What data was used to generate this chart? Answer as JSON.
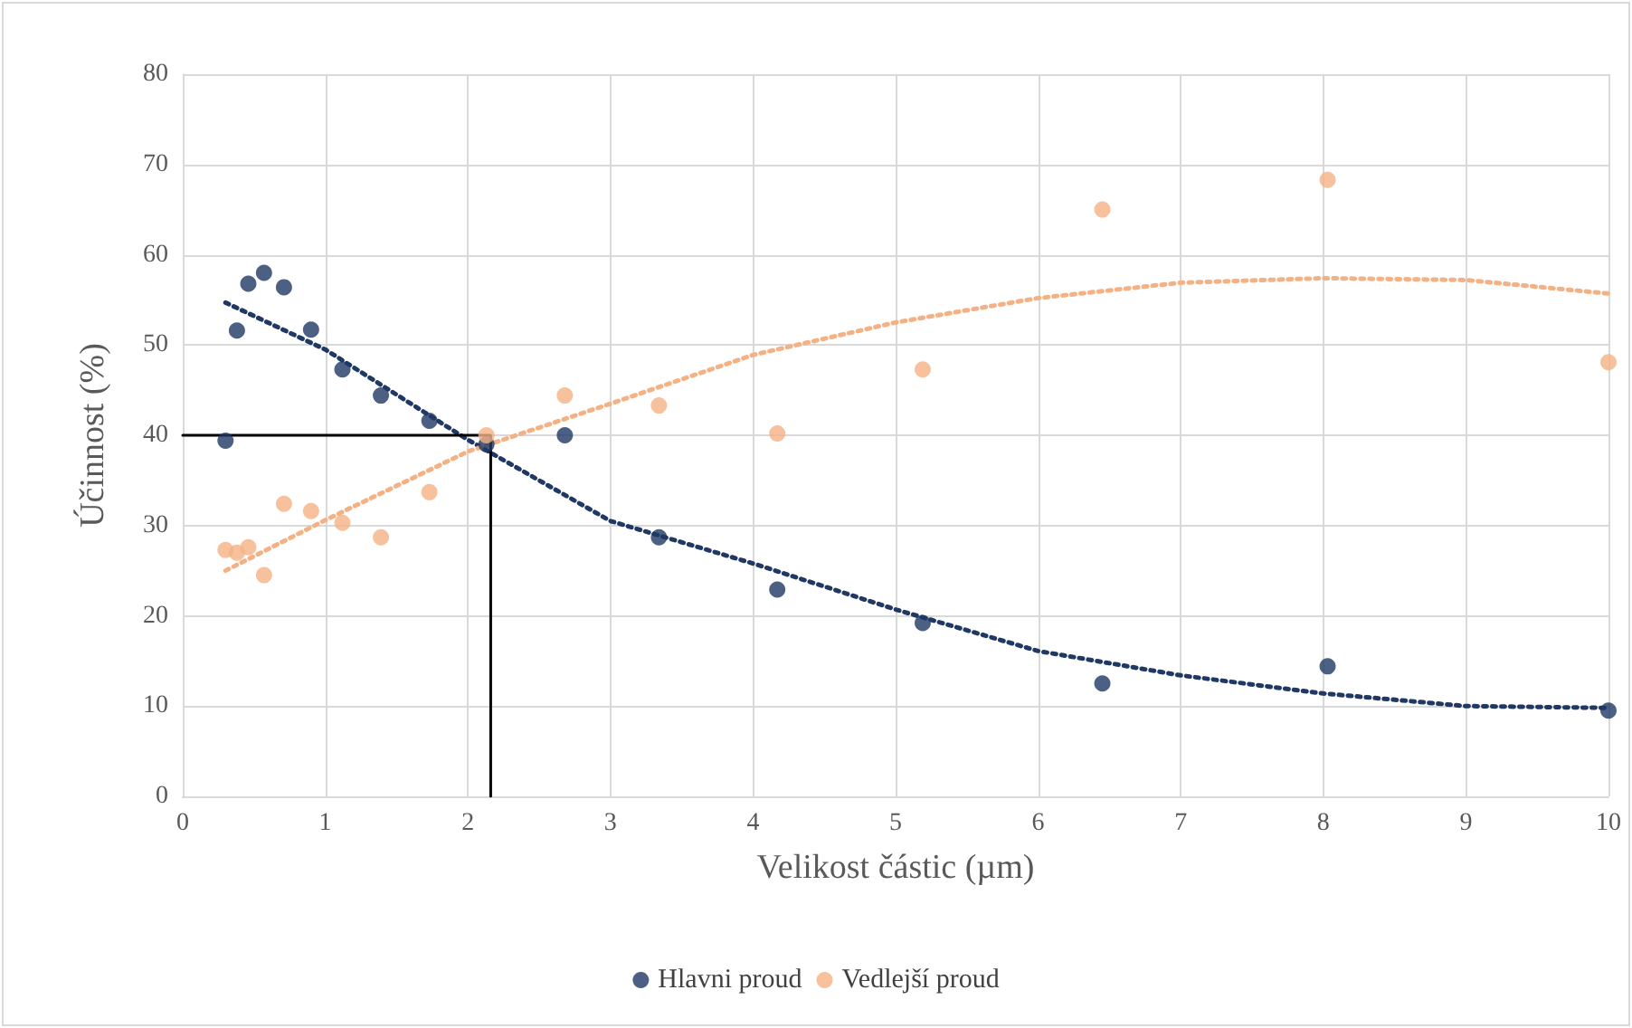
{
  "chart_data": {
    "type": "scatter",
    "xlabel": "Velikost částic (µm)",
    "ylabel": "Účinnost (%)",
    "xlim": [
      0,
      10
    ],
    "xticks": [
      0,
      1,
      2,
      3,
      4,
      5,
      6,
      7,
      8,
      9,
      10
    ],
    "ylim": [
      0,
      80
    ],
    "yticks": [
      0,
      10,
      20,
      30,
      40,
      50,
      60,
      70,
      80
    ],
    "grid": true,
    "legend": "bottom",
    "marker": "circle",
    "series": [
      {
        "name": "Hlavni proud",
        "color": "#1f3864",
        "x": [
          0.3,
          0.38,
          0.46,
          0.57,
          0.71,
          0.9,
          1.12,
          1.39,
          1.73,
          2.13,
          2.68,
          3.34,
          4.17,
          5.19,
          6.45,
          8.03,
          10.0
        ],
        "values": [
          39.4,
          51.6,
          56.8,
          58.0,
          56.4,
          51.7,
          47.3,
          44.4,
          41.6,
          39.0,
          40.0,
          28.7,
          22.9,
          19.2,
          12.5,
          14.4,
          9.5
        ]
      },
      {
        "name": "Vedlejší proud",
        "color": "#f4b183",
        "x": [
          0.3,
          0.38,
          0.46,
          0.57,
          0.71,
          0.9,
          1.12,
          1.39,
          1.73,
          2.13,
          2.68,
          3.34,
          4.17,
          5.19,
          6.45,
          8.03,
          10.0
        ],
        "values": [
          27.3,
          27.0,
          27.6,
          24.5,
          32.4,
          31.6,
          30.3,
          28.7,
          33.7,
          40.0,
          44.4,
          43.3,
          40.2,
          47.3,
          65.0,
          68.3,
          48.1
        ]
      },
      {
        "type": "line",
        "color": "#1f3864",
        "marker": "none",
        "line_style": "dotted",
        "x": [
          0.3,
          1,
          2,
          3,
          4,
          5,
          6,
          7,
          8,
          9,
          10
        ],
        "values": [
          54.7,
          49.5,
          39.5,
          30.5,
          25.8,
          20.7,
          16.1,
          13.4,
          11.4,
          10.0,
          9.8
        ]
      },
      {
        "type": "line",
        "color": "#f4b183",
        "marker": "none",
        "line_style": "dotted",
        "x": [
          0.3,
          1,
          2,
          3,
          4,
          5,
          6,
          7,
          8,
          9,
          10
        ],
        "values": [
          25.0,
          30.6,
          38.2,
          43.5,
          48.9,
          52.5,
          55.2,
          56.9,
          57.4,
          57.2,
          55.7
        ]
      },
      {
        "type": "line",
        "color": "#000000",
        "marker": "none",
        "line_style": "solid",
        "x": [
          0,
          2.16,
          2.16
        ],
        "values": [
          40,
          40,
          0
        ]
      }
    ]
  }
}
